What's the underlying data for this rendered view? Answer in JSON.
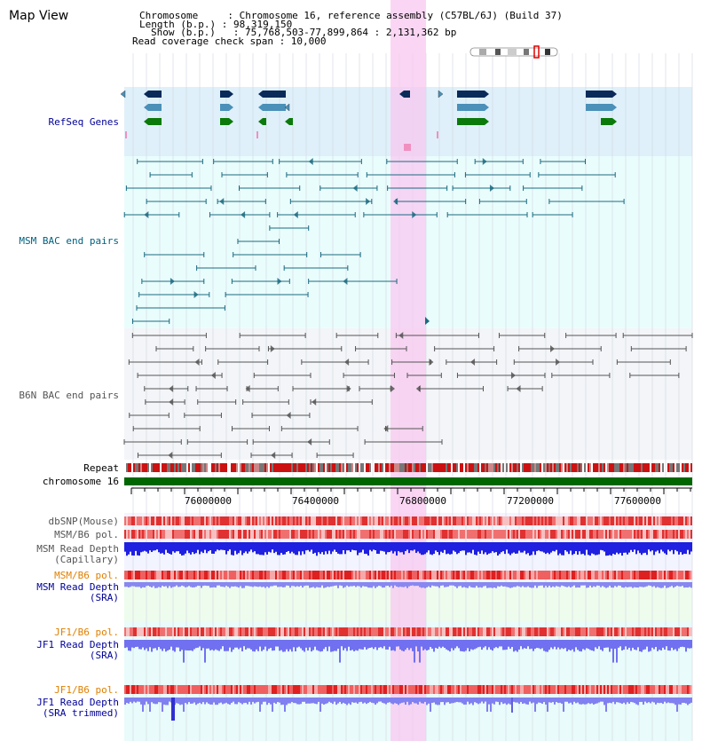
{
  "app": {
    "title": "Map View"
  },
  "header": {
    "lines": [
      "Chromosome     : Chromosome 16, reference assembly (C57BL/6J) (Build 37)",
      "Length (b.p.) : 98,319,150",
      "Show (b.p.)   : 75,768,503-77,899,864 : 2,131,362 bp",
      "Read coverage check span : 10,000"
    ]
  },
  "colors": {
    "refseq_bg": "#dff0fa",
    "msm_bac_bg": "#eafdfd",
    "b6n_bac_bg": "#f3f5f8",
    "highlight": "#f8c8f0",
    "gene_dark": "#0a2a5a",
    "gene_mid": "#4a90b8",
    "gene_green": "#0a7a0a",
    "msm_bac": "#1a6a80",
    "b6n_bac": "#555555",
    "chromosome": "#006600",
    "snp": "#e03030",
    "depth_blue": "#2020e0",
    "depth_light": "#8888f0",
    "label_navy": "#000099",
    "label_teal": "#006080",
    "label_gray": "#555555",
    "label_orange": "#e08000"
  },
  "tracks": {
    "refseq_label": "RefSeq Genes",
    "msm_bac_label": "MSM BAC end pairs",
    "b6n_bac_label": "B6N BAC end pairs",
    "repeat_label": "Repeat",
    "chromosome_label": "chromosome 16",
    "dbsnp_label": "dbSNP(Mouse)",
    "msm_b6_pol_label": "MSM/B6 pol.",
    "msm_depth_cap_label": "MSM Read Depth\n(Capillary)",
    "msm_b6_pol2_label": "MSM/B6 pol.",
    "msm_depth_sra_label": "MSM Read Depth\n(SRA)",
    "jf1_b6_pol_label": "JF1/B6 pol.",
    "jf1_depth_sra_label": "JF1 Read Depth\n(SRA)",
    "jf1_b6_pol2_label": "JF1/B6 pol.",
    "jf1_depth_trim_label": "JF1 Read Depth\n(SRA trimmed)"
  },
  "axis": {
    "ticks": [
      "76000000",
      "76400000",
      "76800000",
      "77200000",
      "77600000"
    ]
  }
}
